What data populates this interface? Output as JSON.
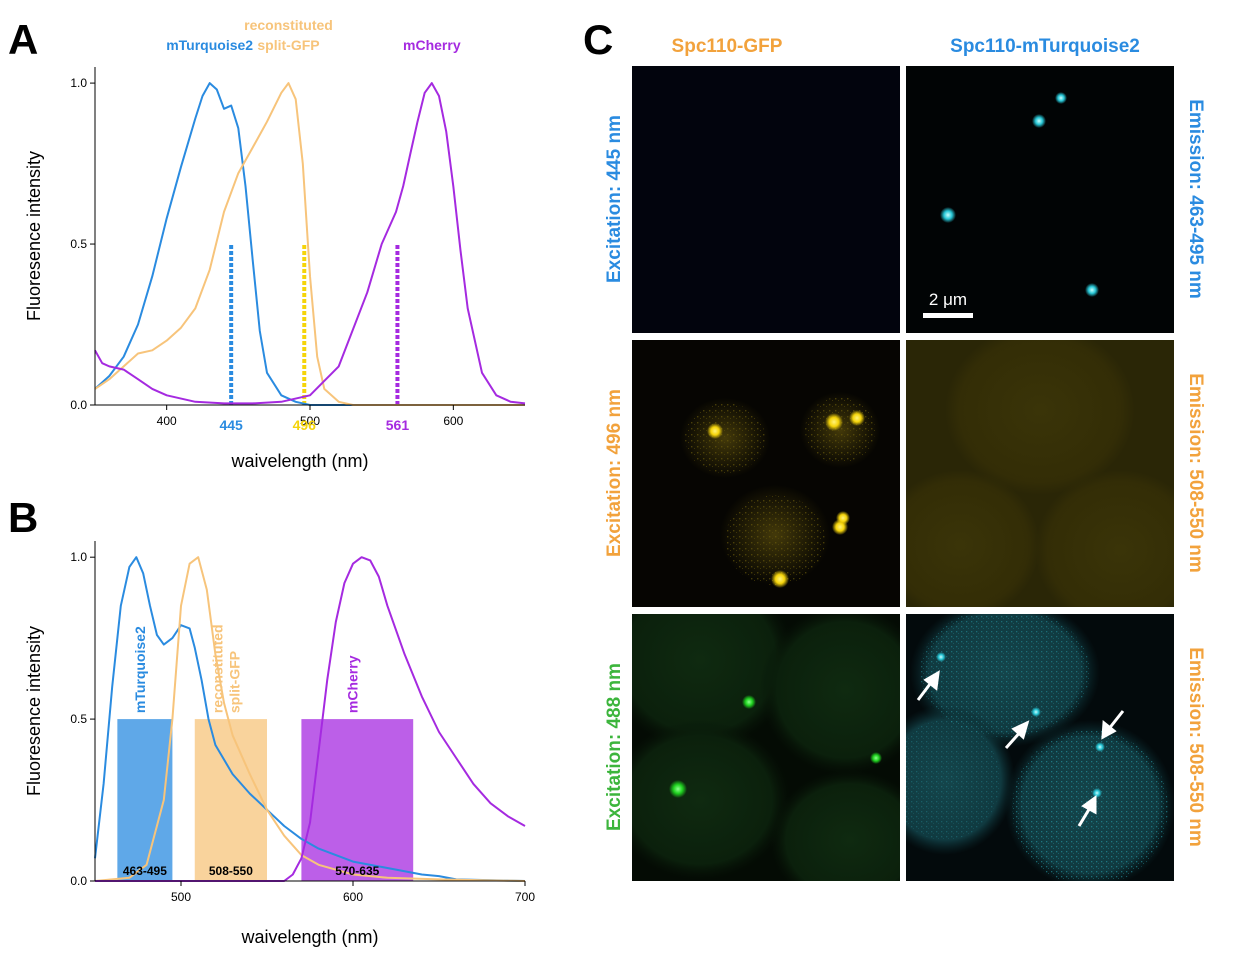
{
  "panels": {
    "a": {
      "letter": "A"
    },
    "b": {
      "letter": "B"
    },
    "c": {
      "letter": "C"
    }
  },
  "colors": {
    "mTurquoise2": "#2a8be0",
    "split_gfp": "#f7c47b",
    "split_gfp_text": "#f2a23c",
    "mCherry": "#a52ae0",
    "excitation_496": "#f5d40a",
    "excitation_488": "#3cb53c"
  },
  "chart_data": [
    {
      "type": "line",
      "panel": "A",
      "xlabel": "waivelength (nm)",
      "ylabel": "Fluoresence intensity",
      "xlim": [
        350,
        650
      ],
      "ylim": [
        0,
        1.05
      ],
      "xticks": [
        400,
        500,
        600
      ],
      "yticks": [
        "0.0",
        "0.5",
        "1.0"
      ],
      "series": [
        {
          "name": "mTurquoise2",
          "color": "#2a8be0",
          "x": [
            350,
            360,
            370,
            380,
            390,
            400,
            410,
            420,
            425,
            430,
            435,
            440,
            445,
            450,
            455,
            460,
            465,
            470,
            480,
            490,
            500,
            520,
            550,
            580,
            620,
            650
          ],
          "y": [
            0.05,
            0.09,
            0.15,
            0.25,
            0.4,
            0.58,
            0.74,
            0.89,
            0.96,
            1.0,
            0.98,
            0.92,
            0.93,
            0.86,
            0.68,
            0.45,
            0.23,
            0.1,
            0.03,
            0.01,
            0,
            0,
            0,
            0,
            0,
            0
          ]
        },
        {
          "name": "reconstituted split-GFP",
          "color": "#f7c47b",
          "x": [
            350,
            360,
            370,
            380,
            390,
            400,
            410,
            420,
            430,
            440,
            450,
            460,
            470,
            480,
            485,
            490,
            495,
            500,
            505,
            510,
            520,
            530,
            550,
            600,
            650
          ],
          "y": [
            0.05,
            0.08,
            0.12,
            0.16,
            0.17,
            0.2,
            0.24,
            0.3,
            0.42,
            0.6,
            0.72,
            0.8,
            0.88,
            0.97,
            1.0,
            0.95,
            0.75,
            0.4,
            0.15,
            0.05,
            0.01,
            0,
            0,
            0,
            0
          ]
        },
        {
          "name": "mCherry",
          "color": "#a52ae0",
          "x": [
            350,
            355,
            360,
            370,
            380,
            390,
            400,
            420,
            440,
            460,
            480,
            500,
            520,
            540,
            550,
            560,
            565,
            570,
            575,
            580,
            585,
            590,
            595,
            600,
            605,
            610,
            620,
            630,
            640,
            650
          ],
          "y": [
            0.17,
            0.13,
            0.12,
            0.11,
            0.08,
            0.05,
            0.03,
            0.01,
            0.005,
            0.005,
            0.01,
            0.03,
            0.12,
            0.35,
            0.5,
            0.6,
            0.68,
            0.78,
            0.88,
            0.97,
            1.0,
            0.96,
            0.85,
            0.68,
            0.48,
            0.3,
            0.1,
            0.03,
            0.01,
            0.005
          ]
        }
      ],
      "series_labels": [
        {
          "lines": [
            "mTurquoise2"
          ],
          "series": "mTurquoise2"
        },
        {
          "lines": [
            "reconstituted",
            "split-GFP"
          ],
          "series": "reconstituted split-GFP"
        },
        {
          "lines": [
            "mCherry"
          ],
          "series": "mCherry"
        }
      ],
      "excitation_lines": [
        {
          "label": "445",
          "x": 445,
          "color": "#2a8be0"
        },
        {
          "label": "496",
          "x": 496,
          "color": "#f5d40a"
        },
        {
          "label": "561",
          "x": 561,
          "color": "#a52ae0"
        }
      ]
    },
    {
      "type": "line",
      "panel": "B",
      "xlabel": "waivelength (nm)",
      "ylabel": "Fluoresence intensity",
      "xlim": [
        450,
        700
      ],
      "ylim": [
        0,
        1.05
      ],
      "xticks": [
        500,
        600,
        700
      ],
      "yticks": [
        "0.0",
        "0.5",
        "1.0"
      ],
      "series": [
        {
          "name": "mTurquoise2",
          "color": "#2a8be0",
          "x": [
            450,
            455,
            460,
            465,
            470,
            474,
            478,
            482,
            486,
            490,
            495,
            500,
            505,
            508,
            512,
            516,
            520,
            530,
            540,
            550,
            560,
            570,
            580,
            600,
            620,
            640,
            650,
            660,
            700
          ],
          "y": [
            0.07,
            0.3,
            0.6,
            0.85,
            0.97,
            1.0,
            0.95,
            0.85,
            0.76,
            0.73,
            0.75,
            0.79,
            0.78,
            0.72,
            0.62,
            0.5,
            0.42,
            0.33,
            0.27,
            0.22,
            0.17,
            0.13,
            0.1,
            0.06,
            0.04,
            0.02,
            0.015,
            0.005,
            0
          ]
        },
        {
          "name": "reconstituted split-GFP",
          "color": "#f7c47b",
          "x": [
            450,
            470,
            480,
            490,
            495,
            500,
            505,
            510,
            515,
            520,
            525,
            530,
            540,
            550,
            560,
            570,
            580,
            600,
            620,
            650,
            700
          ],
          "y": [
            0,
            0.01,
            0.05,
            0.25,
            0.5,
            0.85,
            0.98,
            1.0,
            0.9,
            0.7,
            0.55,
            0.45,
            0.33,
            0.22,
            0.14,
            0.08,
            0.05,
            0.02,
            0.01,
            0.005,
            0
          ]
        },
        {
          "name": "mCherry",
          "color": "#a52ae0",
          "x": [
            450,
            560,
            565,
            570,
            575,
            580,
            585,
            590,
            595,
            600,
            605,
            610,
            615,
            620,
            630,
            640,
            650,
            660,
            670,
            680,
            690,
            700
          ],
          "y": [
            0,
            0,
            0.02,
            0.07,
            0.18,
            0.4,
            0.62,
            0.8,
            0.92,
            0.98,
            1.0,
            0.99,
            0.94,
            0.85,
            0.7,
            0.57,
            0.46,
            0.38,
            0.3,
            0.24,
            0.2,
            0.17
          ]
        }
      ],
      "bands": [
        {
          "label": "463-495",
          "start": 463,
          "end": 495,
          "series_label": "mTurquoise2",
          "color": "#2a8be0"
        },
        {
          "label": "508-550",
          "start": 508,
          "end": 550,
          "series_label": "reconstituted split-GFP",
          "series_label_lines": [
            "reconstituted",
            "split-GFP"
          ],
          "color": "#f7c47b"
        },
        {
          "label": "570-635",
          "start": 570,
          "end": 635,
          "series_label": "mCherry",
          "color": "#a52ae0"
        }
      ]
    }
  ],
  "microscopy": {
    "columns": [
      {
        "label": "Spc110-GFP",
        "color": "#f2a23c"
      },
      {
        "label": "Spc110-mTurquoise2",
        "color": "#2a8be0"
      }
    ],
    "rows": [
      {
        "excitation": "Excitation: 445 nm",
        "excitation_color": "#2a8be0",
        "emission": "Emission: 463-495 nm",
        "emission_color": "#2a8be0"
      },
      {
        "excitation": "Excitation: 496 nm",
        "excitation_color": "#f2a23c",
        "emission": "Emission: 508-550 nm",
        "emission_color": "#f2a23c"
      },
      {
        "excitation": "Excitation: 488 nm",
        "excitation_color": "#3cb53c",
        "emission": "Emission: 508-550 nm",
        "emission_color": "#f2a23c"
      }
    ],
    "scale_bar": "2 μm"
  }
}
